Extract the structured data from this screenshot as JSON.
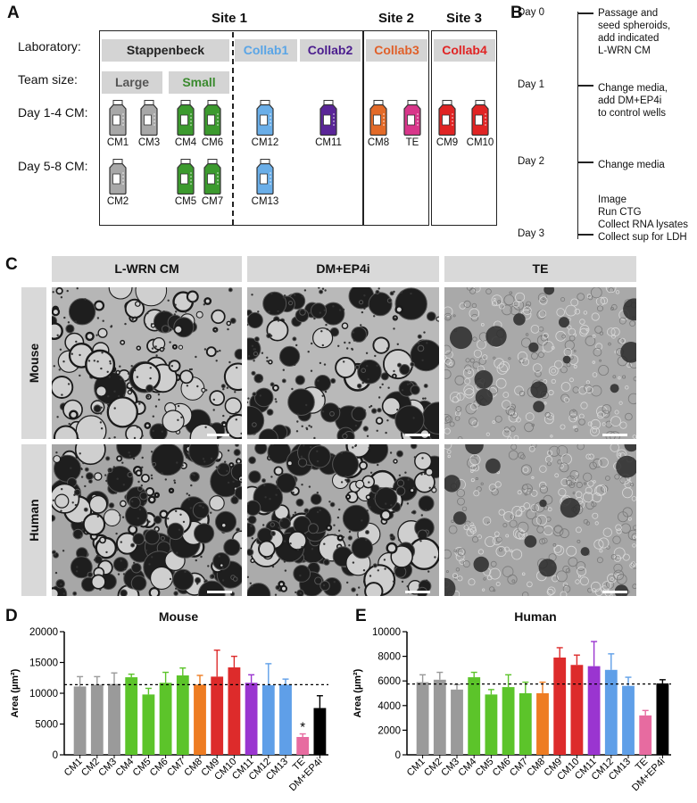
{
  "panelA": {
    "letter": "A",
    "row_labels": {
      "laboratory": "Laboratory:",
      "team_size": "Team size:",
      "d14": "Day 1-4 CM:",
      "d58": "Day 5-8 CM:"
    },
    "sites": [
      "Site 1",
      "Site 2",
      "Site 3"
    ],
    "labs": [
      {
        "name": "Stappenbeck",
        "color": "#222222"
      },
      {
        "name": "Collab1",
        "color": "#5aa5e6"
      },
      {
        "name": "Collab2",
        "color": "#4b1d8e"
      },
      {
        "name": "Collab3",
        "color": "#e0602a"
      },
      {
        "name": "Collab4",
        "color": "#e02424"
      }
    ],
    "team_sizes": [
      {
        "name": "Large",
        "color": "#555555"
      },
      {
        "name": "Small",
        "color": "#3a8a2e"
      }
    ],
    "bottles": [
      {
        "label": "CM1",
        "color": "#a8a8a8"
      },
      {
        "label": "CM3",
        "color": "#a8a8a8"
      },
      {
        "label": "CM4",
        "color": "#3c9a2e"
      },
      {
        "label": "CM6",
        "color": "#3c9a2e"
      },
      {
        "label": "CM12",
        "color": "#6aaee8"
      },
      {
        "label": "CM11",
        "color": "#5a2598"
      },
      {
        "label": "CM8",
        "color": "#e36a28"
      },
      {
        "label": "TE",
        "color": "#d8368a"
      },
      {
        "label": "CM9",
        "color": "#e02424"
      },
      {
        "label": "CM10",
        "color": "#e02424"
      },
      {
        "label": "CM2",
        "color": "#a8a8a8"
      },
      {
        "label": "CM5",
        "color": "#3c9a2e"
      },
      {
        "label": "CM7",
        "color": "#3c9a2e"
      },
      {
        "label": "CM13",
        "color": "#6aaee8"
      }
    ]
  },
  "panelB": {
    "letter": "B",
    "days": [
      "Day 0",
      "Day 1",
      "Day 2",
      "Day 3"
    ],
    "steps": [
      [
        "Passage and",
        "seed spheroids,",
        "add indicated",
        "L-WRN CM"
      ],
      [
        "Change media,",
        "add DM+EP4i",
        "to control wells"
      ],
      [
        "Change media"
      ],
      [
        "Image",
        "Run CTG",
        "Collect RNA lysates",
        "Collect sup for LDH"
      ]
    ]
  },
  "panelC": {
    "letter": "C",
    "columns": [
      "L-WRN CM",
      "DM+EP4i",
      "TE"
    ],
    "rows": [
      "Mouse",
      "Human"
    ]
  },
  "chart_data": [
    {
      "type": "bar",
      "letter": "D",
      "title": "Mouse",
      "ylabel": "Area (µm²)",
      "ylim": [
        0,
        20000
      ],
      "yticks": [
        0,
        5000,
        10000,
        15000,
        20000
      ],
      "reference_line": 11400,
      "categories": [
        "CM1",
        "CM2",
        "CM3",
        "CM4",
        "CM5",
        "CM6",
        "CM7",
        "CM8",
        "CM9",
        "CM10",
        "CM11",
        "CM12",
        "CM13",
        "TE",
        "DM+EP4i"
      ],
      "values": [
        11100,
        11400,
        11500,
        12600,
        9800,
        11700,
        12900,
        11400,
        12700,
        14200,
        11700,
        11300,
        11400,
        2900,
        7600
      ],
      "errors": [
        1600,
        1300,
        1800,
        500,
        1000,
        1700,
        1200,
        1500,
        4300,
        1800,
        1300,
        3500,
        900,
        500,
        2000
      ],
      "colors": [
        "#9a9a9a",
        "#9a9a9a",
        "#9a9a9a",
        "#5cc42a",
        "#5cc42a",
        "#5cc42a",
        "#5cc42a",
        "#ee7c22",
        "#dd2b2b",
        "#dd2b2b",
        "#9a35d0",
        "#5f9fe8",
        "#5f9fe8",
        "#e76ba0",
        "#000000"
      ],
      "annotation": {
        "category": "TE",
        "text": "*"
      }
    },
    {
      "type": "bar",
      "letter": "E",
      "title": "Human",
      "ylabel": "Area (µm²)",
      "ylim": [
        0,
        10000
      ],
      "yticks": [
        0,
        2000,
        4000,
        6000,
        8000,
        10000
      ],
      "reference_line": 5750,
      "categories": [
        "CM1",
        "CM2",
        "CM3",
        "CM4",
        "CM5",
        "CM6",
        "CM7",
        "CM8",
        "CM9",
        "CM10",
        "CM11",
        "CM12",
        "CM13",
        "TE",
        "DM+EP4i"
      ],
      "values": [
        5900,
        6100,
        5300,
        6300,
        4900,
        5500,
        5000,
        5000,
        7900,
        7300,
        7200,
        6900,
        5600,
        3200,
        5800
      ],
      "errors": [
        600,
        600,
        400,
        400,
        400,
        1000,
        900,
        900,
        800,
        800,
        2000,
        1300,
        700,
        400,
        300
      ],
      "colors": [
        "#9a9a9a",
        "#9a9a9a",
        "#9a9a9a",
        "#5cc42a",
        "#5cc42a",
        "#5cc42a",
        "#5cc42a",
        "#ee7c22",
        "#dd2b2b",
        "#dd2b2b",
        "#9a35d0",
        "#5f9fe8",
        "#5f9fe8",
        "#e76ba0",
        "#000000"
      ]
    }
  ]
}
